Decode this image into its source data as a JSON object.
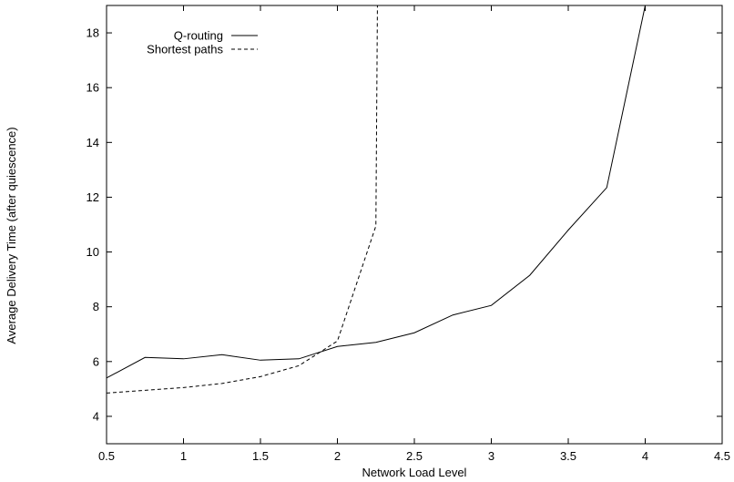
{
  "chart_data": {
    "type": "line",
    "xlabel": "Network Load Level",
    "ylabel": "Average Delivery Time (after quiescence)",
    "xlim": [
      0.5,
      4.5
    ],
    "ylim": [
      3,
      19
    ],
    "xticks": [
      0.5,
      1,
      1.5,
      2,
      2.5,
      3,
      3.5,
      4,
      4.5
    ],
    "yticks": [
      4,
      6,
      8,
      10,
      12,
      14,
      16,
      18
    ],
    "xtick_labels": [
      "0.5",
      "1",
      "1.5",
      "2",
      "2.5",
      "3",
      "3.5",
      "4",
      "4.5"
    ],
    "ytick_labels": [
      "4",
      "6",
      "8",
      "10",
      "12",
      "14",
      "16",
      "18"
    ],
    "grid": false,
    "legend_position": "top-left",
    "series": [
      {
        "name": "Q-routing",
        "style": "solid",
        "color": "#000000",
        "x": [
          0.5,
          0.75,
          1.0,
          1.25,
          1.5,
          1.75,
          2.0,
          2.25,
          2.5,
          2.75,
          3.0,
          3.25,
          3.5,
          3.75,
          4.0
        ],
        "y": [
          5.4,
          6.15,
          6.1,
          6.25,
          6.05,
          6.1,
          6.55,
          6.7,
          7.05,
          7.7,
          8.05,
          9.15,
          10.8,
          12.35,
          19.0
        ]
      },
      {
        "name": "Shortest paths",
        "style": "dashed",
        "color": "#000000",
        "x": [
          0.5,
          0.75,
          1.0,
          1.25,
          1.5,
          1.75,
          2.0,
          2.25,
          2.26
        ],
        "y": [
          4.85,
          4.95,
          5.05,
          5.2,
          5.45,
          5.85,
          6.75,
          10.95,
          19.0
        ]
      }
    ]
  }
}
